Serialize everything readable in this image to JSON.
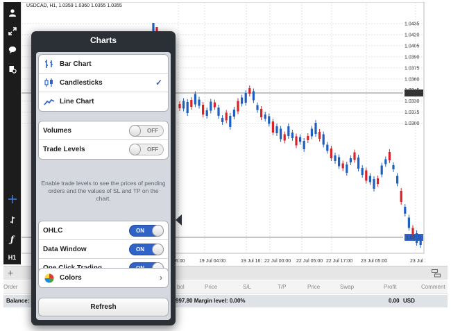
{
  "chart": {
    "title": "USDCAD, H1, 1.0359 1.0360 1.0355 1.0355",
    "price_labels": [
      "1.0435",
      "1.0420",
      "1.0405",
      "1.0390",
      "1.0375",
      "1.0360",
      "1.0345",
      "1.0330",
      "1.0315",
      "1.0300"
    ],
    "current_price_top": "1.0356",
    "current_price_bottom": "1.0285",
    "time_labels": [
      "16:00",
      "19 Jul 04:00",
      "19 Jul 16:",
      "22 Jul 00:00",
      "22 Jul 05:00",
      "22 Jul 17:00",
      "23 Jul 05:00",
      "23 Jul 17:00"
    ],
    "colors": {
      "bull": "#1f5fbf",
      "bear": "#d8232a"
    }
  },
  "toolbar": {
    "icons": [
      "account-icon",
      "resize-icon",
      "chat-icon",
      "document-settings-icon",
      "crosshair-icon",
      "indicator-icon",
      "function-icon"
    ],
    "timeframe": "H1"
  },
  "terminal": {
    "columns": [
      "Order",
      "bol",
      "Price",
      "S/L",
      "T/P",
      "Price",
      "Swap",
      "Profit",
      "Comment"
    ],
    "balance_label": "Balance:",
    "balance_text": "997.80 Margin level: 0.00%",
    "profit_total": "0.00",
    "currency": "USD"
  },
  "popover": {
    "title": "Charts",
    "chart_types": [
      {
        "label": "Bar Chart",
        "icon": "bar-chart-icon",
        "selected": false
      },
      {
        "label": "Candlesticks",
        "icon": "candlesticks-icon",
        "selected": true
      },
      {
        "label": "Line Chart",
        "icon": "line-chart-icon",
        "selected": false
      }
    ],
    "toggles_a": [
      {
        "label": "Volumes",
        "state": "OFF"
      },
      {
        "label": "Trade Levels",
        "state": "OFF"
      }
    ],
    "trade_note": "Enable trade levels to see the prices of pending orders and the values of SL and TP on the chart.",
    "toggles_b": [
      {
        "label": "OHLC",
        "state": "ON"
      },
      {
        "label": "Data Window",
        "state": "ON"
      },
      {
        "label": "One Click Trading",
        "state": "ON"
      }
    ],
    "colors_label": "Colors",
    "refresh_label": "Refresh"
  }
}
